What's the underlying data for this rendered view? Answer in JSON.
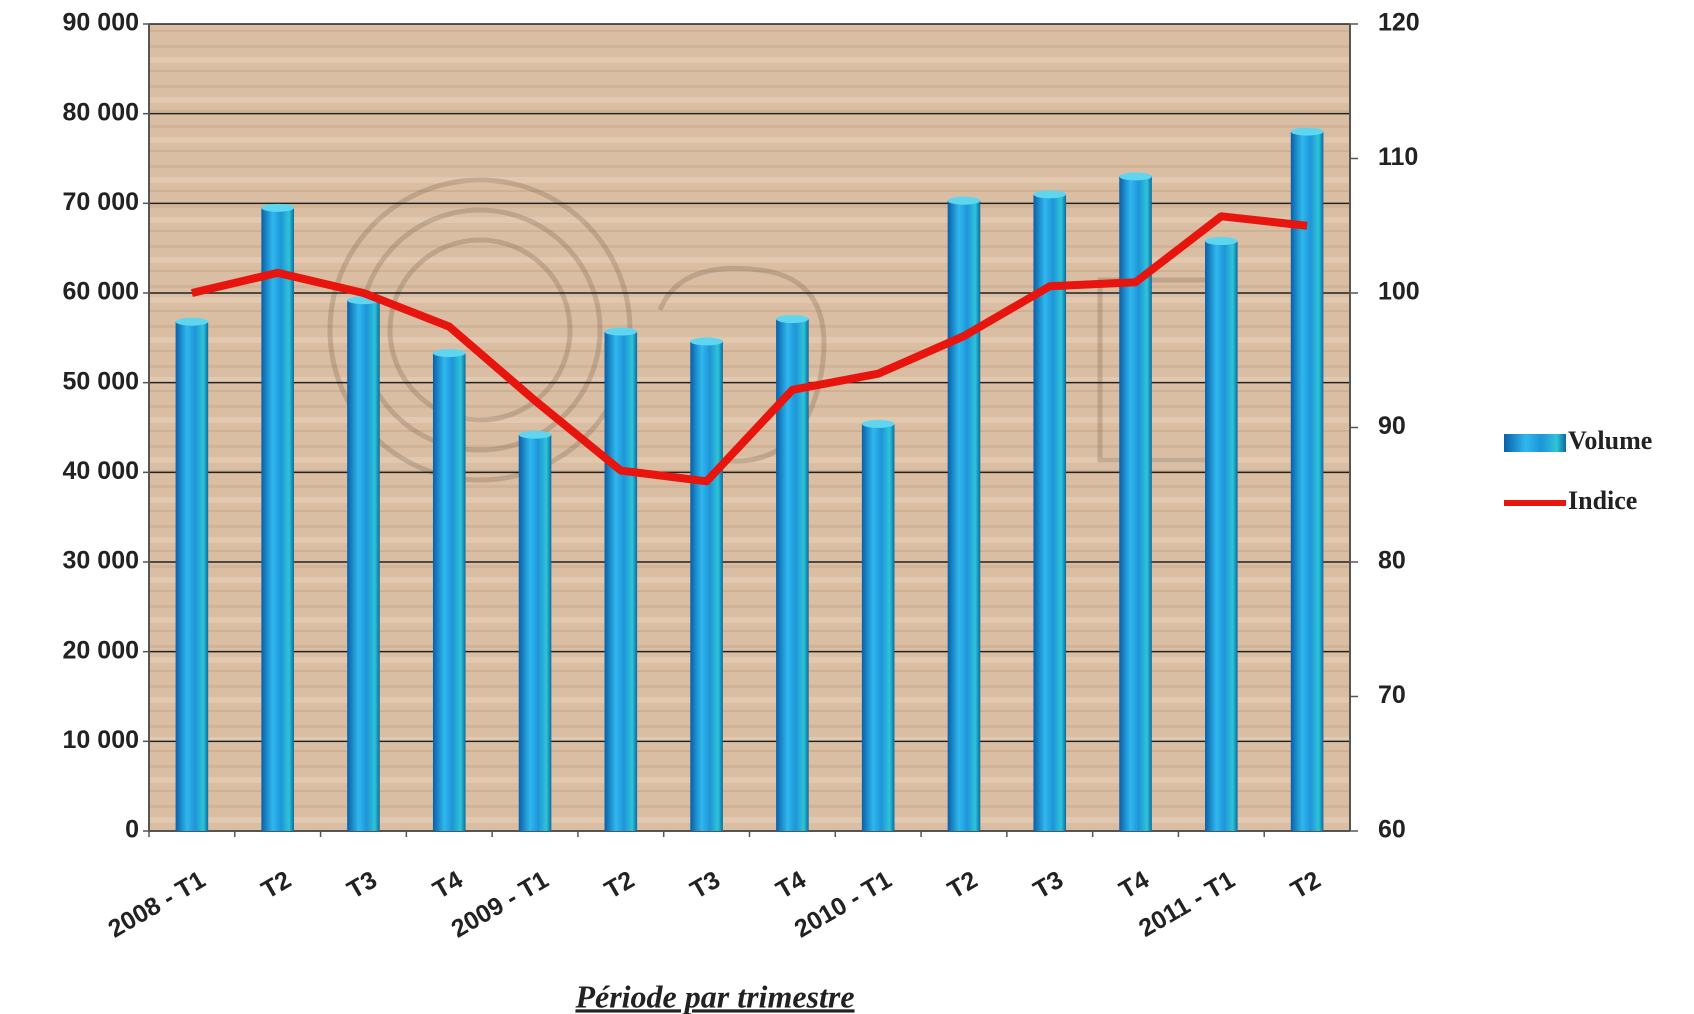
{
  "chart_data": {
    "type": "bar_line",
    "xlabel": "Période par trimestre",
    "categories": [
      "2008 - T1",
      "T2",
      "T3",
      "T4",
      "2009 - T1",
      "T2",
      "T3",
      "T4",
      "2010 - T1",
      "T2",
      "T3",
      "T4",
      "2011 - T1",
      "T2"
    ],
    "series": [
      {
        "name": "Volume",
        "type": "bar",
        "color": "#1c8fd8",
        "values": [
          56800,
          69500,
          59200,
          53300,
          44200,
          55700,
          54600,
          57100,
          45400,
          70300,
          71000,
          73000,
          65800,
          78000
        ]
      },
      {
        "name": "Indice",
        "type": "line",
        "axis": "y2",
        "color": "#e8140e",
        "values": [
          100,
          101.5,
          100,
          97.5,
          92,
          86.8,
          86,
          92.8,
          94,
          96.8,
          100.5,
          100.8,
          105.7,
          105
        ]
      }
    ],
    "ylim": [
      0,
      90000
    ],
    "yticks": [
      0,
      {
        "value": 10000,
        "label": "10 000"
      },
      {
        "value": 20000,
        "label": "20 000"
      },
      {
        "value": 30000,
        "label": "30 000"
      },
      {
        "value": 40000,
        "label": "40 000"
      },
      {
        "value": 50000,
        "label": "50 000"
      },
      {
        "value": 60000,
        "label": "60 000"
      },
      {
        "value": 70000,
        "label": "70 000"
      },
      {
        "value": 80000,
        "label": "80 000"
      },
      {
        "value": 90000,
        "label": "90 000"
      }
    ],
    "y2lim": [
      60,
      120
    ],
    "y2ticks": [
      60,
      70,
      80,
      90,
      100,
      110,
      120
    ],
    "grid": true,
    "legend": "right"
  }
}
